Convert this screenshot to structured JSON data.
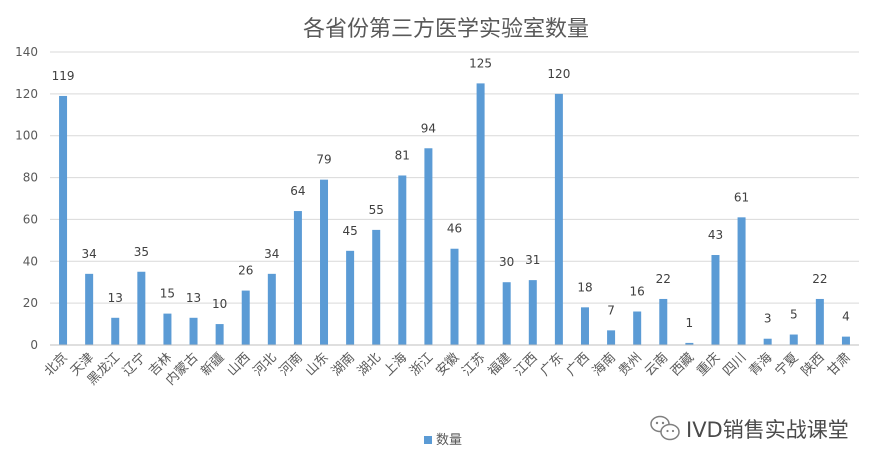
{
  "chart_data": {
    "type": "bar",
    "title": "各省份第三方医学实验室数量",
    "xlabel": "",
    "ylabel": "",
    "ylim": [
      0,
      140
    ],
    "yticks": [
      0,
      20,
      40,
      60,
      80,
      100,
      120,
      140
    ],
    "grid": true,
    "legend_position": "bottom",
    "categories": [
      "北京",
      "天津",
      "黑龙江",
      "辽宁",
      "吉林",
      "内蒙古",
      "新疆",
      "山西",
      "河北",
      "河南",
      "山东",
      "湖南",
      "湖北",
      "上海",
      "浙江",
      "安徽",
      "江苏",
      "福建",
      "江西",
      "广东",
      "广西",
      "海南",
      "贵州",
      "云南",
      "西藏",
      "重庆",
      "四川",
      "青海",
      "宁夏",
      "陕西",
      "甘肃"
    ],
    "series": [
      {
        "name": "数量",
        "color": "#5B9BD5",
        "values": [
          119,
          34,
          13,
          35,
          15,
          13,
          10,
          26,
          34,
          64,
          79,
          45,
          55,
          81,
          94,
          46,
          125,
          30,
          31,
          120,
          18,
          7,
          16,
          22,
          1,
          43,
          61,
          3,
          5,
          22,
          4
        ]
      }
    ]
  },
  "watermark": {
    "text": "IVD销售实战课堂",
    "icon": "wechat-icon"
  }
}
